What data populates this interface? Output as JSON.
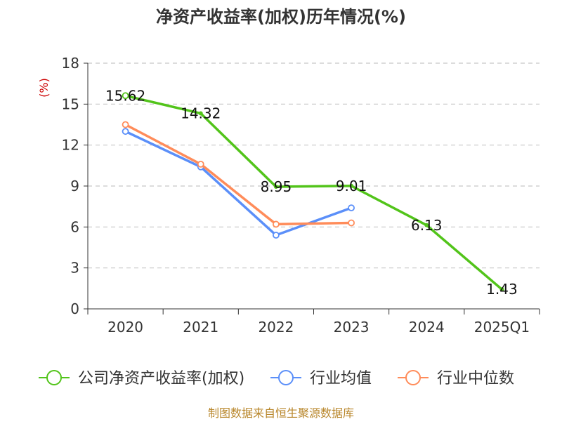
{
  "title": "净资产收益率(加权)历年情况(%)",
  "source": "制图数据来自恒生聚源数据库",
  "chart_data": {
    "type": "line",
    "title": "净资产收益率(加权)历年情况(%)",
    "ylabel": "(%)",
    "xlabel": "",
    "categories": [
      "2020",
      "2021",
      "2022",
      "2023",
      "2024",
      "2025Q1"
    ],
    "ylim": [
      0,
      18
    ],
    "yticks": [
      0,
      3,
      6,
      9,
      12,
      15,
      18
    ],
    "grid": true,
    "legend_position": "bottom",
    "series": [
      {
        "name": "公司净资产收益率(加权)",
        "color": "#52c41a",
        "values": [
          15.62,
          14.32,
          8.95,
          9.01,
          6.13,
          1.43
        ],
        "labels": [
          "15.62",
          "14.32",
          "8.95",
          "9.01",
          "6.13",
          "1.43"
        ],
        "show_labels": true,
        "show_markers": false
      },
      {
        "name": "行业均值",
        "color": "#5b8ff9",
        "values": [
          13.0,
          10.4,
          5.4,
          7.4,
          null,
          null
        ],
        "show_labels": false,
        "show_markers": true
      },
      {
        "name": "行业中位数",
        "color": "#ff8c5a",
        "values": [
          13.5,
          10.6,
          6.2,
          6.3,
          null,
          null
        ],
        "show_labels": false,
        "show_markers": true
      }
    ]
  }
}
